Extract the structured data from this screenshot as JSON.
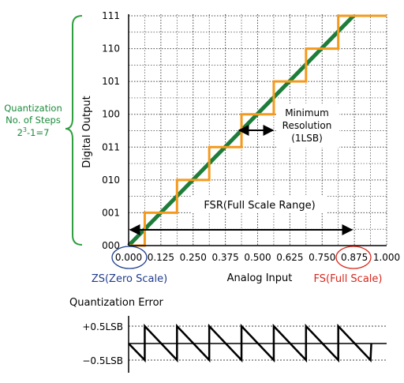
{
  "y_axis_label": "Digital Output",
  "x_axis_label": "Analog Input",
  "y_ticks": [
    "000",
    "001",
    "010",
    "011",
    "100",
    "101",
    "110",
    "111"
  ],
  "x_ticks": [
    "0.000",
    "0.125",
    "0.250",
    "0.375",
    "0.500",
    "0.625",
    "0.750",
    "0.875",
    "1.000"
  ],
  "quantization_brace": {
    "line1": "Quantization",
    "line2": "No. of Steps",
    "formula_base": "2",
    "formula_exp": "3",
    "formula_rest": "-1=7"
  },
  "min_resolution": {
    "line1": "Minimum",
    "line2": "Resolution",
    "line3": "(1LSB)"
  },
  "fsr_label": "FSR(Full Scale Range)",
  "zs_label": "ZS(Zero Scale)",
  "fs_label": "FS(Full Scale)",
  "error_title": "Quantization Error",
  "error_plus_label": "+0.5LSB",
  "error_minus_label": "−0.5LSB",
  "colors": {
    "staircase": "#f39a1e",
    "ideal_line": "#1e7d3a",
    "brace": "#2e9e3e",
    "quantization_text": "#1a8a3a",
    "zs": "#1f3b8c",
    "fs": "#d9261c",
    "grid": "#444444",
    "axis": "#000000"
  }
}
